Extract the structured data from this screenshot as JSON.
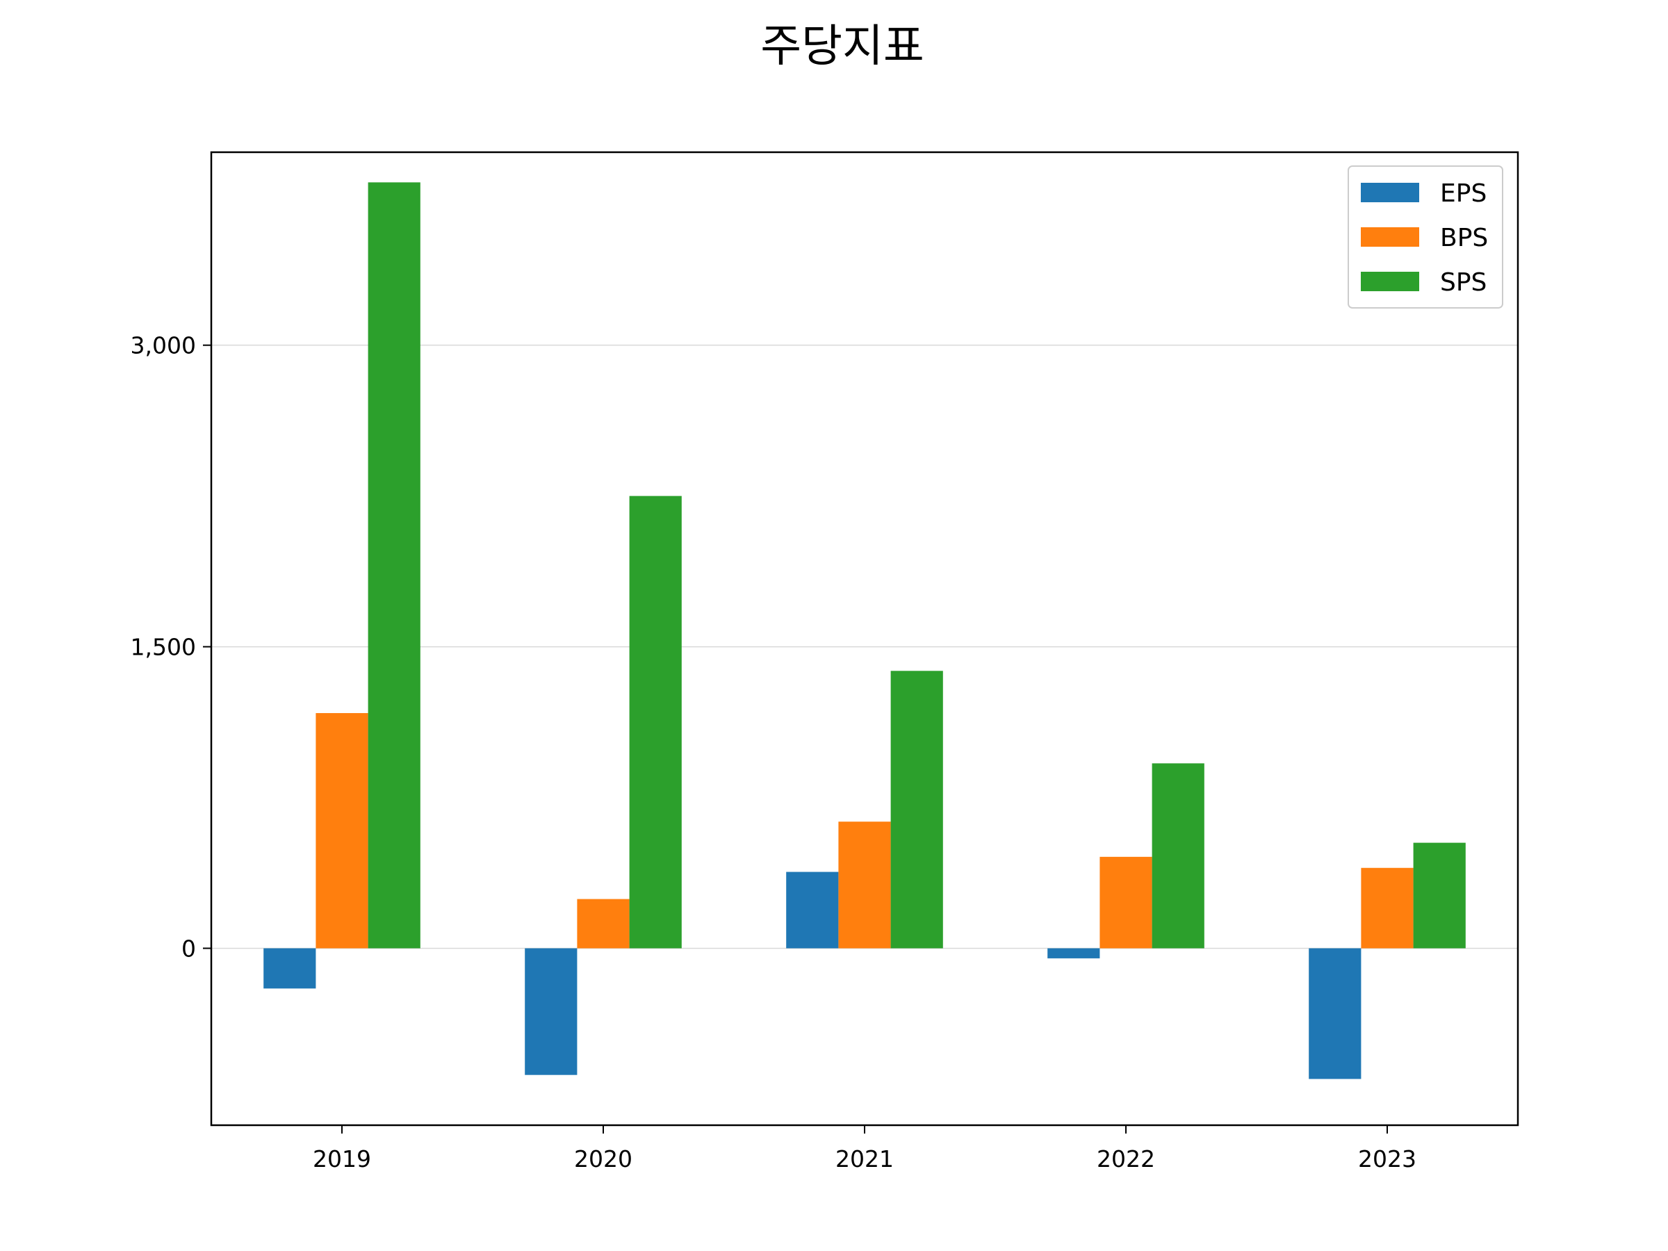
{
  "chart_data": {
    "type": "bar",
    "title": "주당지표",
    "xlabel": "",
    "ylabel": "",
    "categories": [
      "2019",
      "2020",
      "2021",
      "2022",
      "2023"
    ],
    "series": [
      {
        "name": "EPS",
        "color": "#1f77b4",
        "values": [
          -200,
          -630,
          380,
          -50,
          -650
        ]
      },
      {
        "name": "BPS",
        "color": "#ff7f0e",
        "values": [
          1170,
          245,
          630,
          455,
          400
        ]
      },
      {
        "name": "SPS",
        "color": "#2ca02c",
        "values": [
          3810,
          2250,
          1380,
          920,
          525
        ]
      }
    ],
    "ylim": [
      -880,
      3960
    ],
    "yticks": [
      0,
      1500,
      3000
    ],
    "ytick_labels": [
      "0",
      "1,500",
      "3,000"
    ],
    "grid": "horizontal",
    "legend_position": "top-right"
  }
}
